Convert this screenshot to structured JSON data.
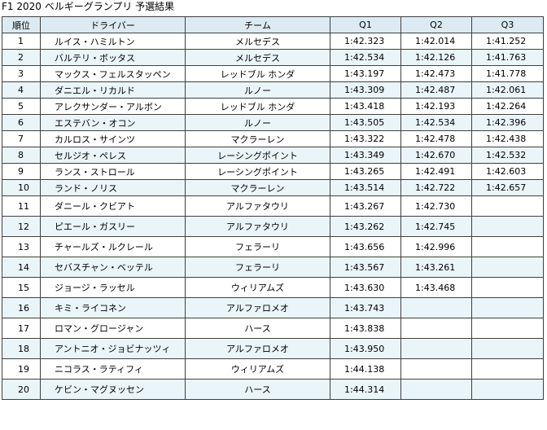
{
  "title": "F1 2020 ベルギーグランプリ 予選結果",
  "columns": [
    "順位",
    "ドライバー",
    "チーム",
    "Q1",
    "Q2",
    "Q3"
  ],
  "rows": [
    {
      "pos": "1",
      "driver": "ルイス・ハミルトン",
      "team": "メルセデス",
      "q1": "1:42.323",
      "q2": "1:42.014",
      "q3": "1:41.252"
    },
    {
      "pos": "2",
      "driver": "バルテリ・ボッタス",
      "team": "メルセデス",
      "q1": "1:42.534",
      "q2": "1:42.126",
      "q3": "1:41.763"
    },
    {
      "pos": "3",
      "driver": "マックス・フェルスタッペン",
      "team": "レッドブル ホンダ",
      "q1": "1:43.197",
      "q2": "1:42.473",
      "q3": "1:41.778"
    },
    {
      "pos": "4",
      "driver": "ダニエル・リカルド",
      "team": "ルノー",
      "q1": "1:43.309",
      "q2": "1:42.487",
      "q3": "1:42.061"
    },
    {
      "pos": "5",
      "driver": "アレクサンダー・アルボン",
      "team": "レッドブル ホンダ",
      "q1": "1:43.418",
      "q2": "1:42.193",
      "q3": "1:42.264"
    },
    {
      "pos": "6",
      "driver": "エステバン・オコン",
      "team": "ルノー",
      "q1": "1:43.505",
      "q2": "1:42.534",
      "q3": "1:42.396"
    },
    {
      "pos": "7",
      "driver": "カルロス・サインツ",
      "team": "マクラーレン",
      "q1": "1:43.322",
      "q2": "1:42.478",
      "q3": "1:42.438"
    },
    {
      "pos": "8",
      "driver": "セルジオ・ペレス",
      "team": "レーシングポイント",
      "q1": "1:43.349",
      "q2": "1:42.670",
      "q3": "1:42.532"
    },
    {
      "pos": "9",
      "driver": "ランス・ストロール",
      "team": "レーシングポイント",
      "q1": "1:43.265",
      "q2": "1:42.491",
      "q3": "1:42.603"
    },
    {
      "pos": "10",
      "driver": "ランド・ノリス",
      "team": "マクラーレン",
      "q1": "1:43.514",
      "q2": "1:42.722",
      "q3": "1:42.657"
    },
    {
      "pos": "11",
      "driver": "ダニール・クビアト",
      "team": "アルファタウリ",
      "q1": "1:43.267",
      "q2": "1:42.730",
      "q3": ""
    },
    {
      "pos": "12",
      "driver": "ピエール・ガスリー",
      "team": "アルファタウリ",
      "q1": "1:43.262",
      "q2": "1:42.745",
      "q3": ""
    },
    {
      "pos": "13",
      "driver": "チャールズ・ルクレール",
      "team": "フェラーリ",
      "q1": "1:43.656",
      "q2": "1:42.996",
      "q3": ""
    },
    {
      "pos": "14",
      "driver": "セバスチャン・ベッテル",
      "team": "フェラーリ",
      "q1": "1:43.567",
      "q2": "1:43.261",
      "q3": ""
    },
    {
      "pos": "15",
      "driver": "ジョージ・ラッセル",
      "team": "ウィリアムズ",
      "q1": "1:43.630",
      "q2": "1:43.468",
      "q3": ""
    },
    {
      "pos": "16",
      "driver": "キミ・ライコネン",
      "team": "アルファロメオ",
      "q1": "1:43.743",
      "q2": "",
      "q3": ""
    },
    {
      "pos": "17",
      "driver": "ロマン・グロージャン",
      "team": "ハース",
      "q1": "1:43.838",
      "q2": "",
      "q3": ""
    },
    {
      "pos": "18",
      "driver": "アントニオ・ジョビナッツィ",
      "team": "アルファロメオ",
      "q1": "1:43.950",
      "q2": "",
      "q3": ""
    },
    {
      "pos": "19",
      "driver": "ニコラス・ラティフィ",
      "team": "ウィリアムズ",
      "q1": "1:44.138",
      "q2": "",
      "q3": ""
    },
    {
      "pos": "20",
      "driver": "ケビン・マグヌッセン",
      "team": "ハース",
      "q1": "1:44.314",
      "q2": "",
      "q3": ""
    }
  ],
  "colors": {
    "header_bg": "#dcebf3",
    "row_shade": "#eaf5fa",
    "border": "#404040"
  }
}
